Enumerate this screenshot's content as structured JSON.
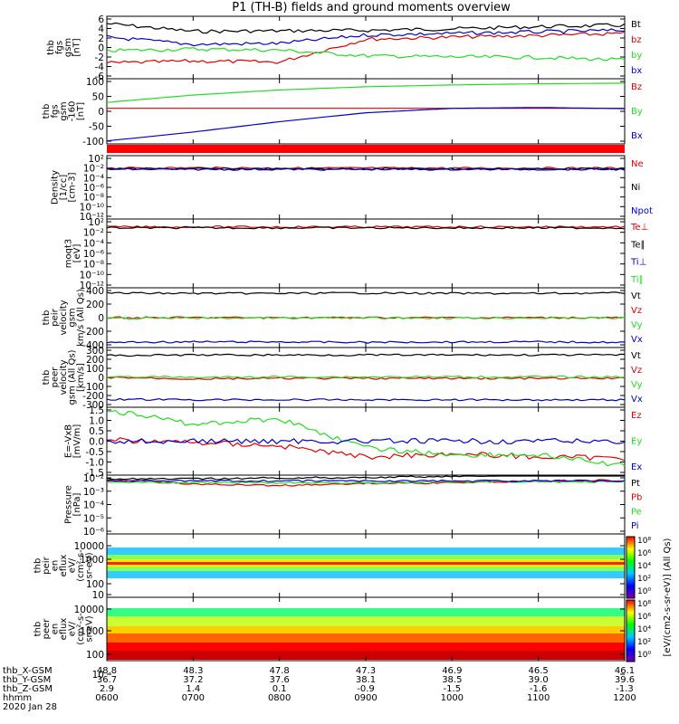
{
  "title": "P1 (TH-B) fields and ground moments overview",
  "colors": {
    "black": "#000000",
    "red": "#e00000",
    "green": "#22dd22",
    "blue": "#0000cc"
  },
  "panels": [
    {
      "id": "fgs",
      "ylabel_lines": [
        "thb",
        "fgs",
        "gsm",
        "[nT]"
      ],
      "yticks": [
        "6",
        "4",
        "2",
        "0",
        "-2",
        "-4",
        "-6"
      ],
      "legend": [
        {
          "text": "Bt",
          "color": "black"
        },
        {
          "text": "bz",
          "color": "red"
        },
        {
          "text": "by",
          "color": "green"
        },
        {
          "text": "bx",
          "color": "blue"
        }
      ]
    },
    {
      "id": "fgs_low",
      "ylabel_lines": [
        "thb",
        "fgs",
        "gsm",
        "-160",
        "[nT]"
      ],
      "yticks": [
        "100",
        "50",
        "0",
        "-50",
        "-100"
      ],
      "legend": [
        {
          "text": "Bz",
          "color": "red"
        },
        {
          "text": "By",
          "color": "green"
        },
        {
          "text": "Bx",
          "color": "blue"
        }
      ]
    },
    {
      "id": "density",
      "ylabel_lines": [
        "Density",
        "[1/cc]",
        "[cm-3]"
      ],
      "yticks": [
        "10²",
        "10⁻²",
        "10⁻⁴",
        "10⁻⁶",
        "10⁻⁸",
        "10⁻¹⁰",
        "10⁻¹²"
      ],
      "legend": [
        {
          "text": "Ne",
          "color": "red"
        },
        {
          "text": "Ni",
          "color": "black"
        },
        {
          "text": "Npot",
          "color": "blue"
        }
      ]
    },
    {
      "id": "temp",
      "ylabel_lines": [
        "moqt3",
        "[eV]"
      ],
      "yticks": [
        "10²",
        "10⁻²",
        "10⁻⁴",
        "10⁻⁶",
        "10⁻⁸",
        "10⁻¹⁰",
        "10⁻¹²"
      ],
      "legend": [
        {
          "text": "Te⊥",
          "color": "red"
        },
        {
          "text": "Te∥",
          "color": "black"
        },
        {
          "text": "Ti⊥",
          "color": "blue"
        },
        {
          "text": "Ti∥",
          "color": "green"
        }
      ]
    },
    {
      "id": "peir_vel",
      "ylabel_lines": [
        "thb",
        "peir",
        "velocity",
        "gsm",
        "km/s (All Qs)"
      ],
      "yticks": [
        "400",
        "200",
        "0",
        "-200",
        "-400"
      ],
      "legend": [
        {
          "text": "Vt",
          "color": "black"
        },
        {
          "text": "Vz",
          "color": "red"
        },
        {
          "text": "Vy",
          "color": "green"
        },
        {
          "text": "Vx",
          "color": "blue"
        }
      ]
    },
    {
      "id": "peer_vel",
      "ylabel_lines": [
        "thb",
        "peer",
        "velocity",
        "gsm (All Qs)",
        "[km/s]"
      ],
      "yticks": [
        "300",
        "200",
        "100",
        "0",
        "-100",
        "-200",
        "-300"
      ],
      "legend": [
        {
          "text": "Vt",
          "color": "black"
        },
        {
          "text": "Vz",
          "color": "red"
        },
        {
          "text": "Vy",
          "color": "green"
        },
        {
          "text": "Vx",
          "color": "blue"
        }
      ]
    },
    {
      "id": "efield",
      "ylabel_lines": [
        "E=-VxB",
        "[mV/m]"
      ],
      "yticks": [
        "1.5",
        "1.0",
        "0.5",
        "0.0",
        "-0.5",
        "-1.0",
        "-1.5"
      ],
      "legend": [
        {
          "text": "Ez",
          "color": "red"
        },
        {
          "text": "Ey",
          "color": "green"
        },
        {
          "text": "Ex",
          "color": "blue"
        }
      ]
    },
    {
      "id": "pressure",
      "ylabel_lines": [
        "Pressure",
        "[nPa]"
      ],
      "yticks": [
        "10⁻²",
        "10⁻³",
        "10⁻⁴",
        "10⁻⁵",
        "10⁻⁶"
      ],
      "legend": [
        {
          "text": "Pt",
          "color": "black"
        },
        {
          "text": "Pb",
          "color": "red"
        },
        {
          "text": "Pe",
          "color": "green"
        },
        {
          "text": "Pi",
          "color": "blue"
        }
      ]
    },
    {
      "id": "peir_spec",
      "ylabel_lines": [
        "thb",
        "peir",
        "en",
        "eflux",
        "eV/",
        "(cm²-s-",
        "sr-eV)"
      ],
      "yticks": [
        "10000",
        "1000",
        "100",
        "10"
      ],
      "legend": []
    },
    {
      "id": "peer_spec",
      "ylabel_lines": [
        "thb",
        "peer",
        "en",
        "eflux",
        "eV/",
        "(cm²-s-",
        "sr-eV)"
      ],
      "yticks": [
        "10000",
        "1000",
        "100",
        "10"
      ],
      "legend": []
    }
  ],
  "colorbar": {
    "ticks": [
      "10⁸",
      "10⁶",
      "10⁴",
      "10²",
      "10⁰"
    ],
    "label": "[eV/(cm2-s-sr-eV)] (All Qs)"
  },
  "xaxis": {
    "row_labels": [
      "thb_X-GSM",
      "thb_Y-GSM",
      "thb_Z-GSM",
      "hhmm",
      "2020 Jan 28"
    ],
    "x_gsm": [
      "48.8",
      "48.3",
      "47.8",
      "47.3",
      "46.9",
      "46.5",
      "46.1"
    ],
    "y_gsm": [
      "36.7",
      "37.2",
      "37.6",
      "38.1",
      "38.5",
      "39.0",
      "39.6"
    ],
    "z_gsm": [
      "2.9",
      "1.4",
      "0.1",
      "-0.9",
      "-1.5",
      "-1.6",
      "-1.3"
    ],
    "hhmm": [
      "0600",
      "0700",
      "0800",
      "0900",
      "1000",
      "1100",
      "1200"
    ]
  },
  "chart_data": {
    "type": "line",
    "title": "P1 (TH-B) fields and ground moments overview",
    "x": [
      "0600",
      "0700",
      "0800",
      "0900",
      "1000",
      "1100",
      "1200"
    ],
    "xlabel": "hhmm",
    "subplots": [
      {
        "panel": "fgs",
        "ylim": [
          -6,
          6
        ],
        "series": [
          {
            "name": "Bt",
            "values": [
              4.6,
              3.1,
              3.2,
              3.3,
              3.6,
              4.0,
              4.3
            ]
          },
          {
            "name": "bz",
            "values": [
              -3.0,
              -2.6,
              -2.8,
              1.6,
              2.0,
              2.3,
              2.7
            ]
          },
          {
            "name": "by",
            "values": [
              -0.6,
              -0.3,
              -0.5,
              -1.6,
              -1.8,
              -1.9,
              -2.4
            ]
          },
          {
            "name": "bx",
            "values": [
              2.0,
              0.6,
              0.8,
              2.4,
              2.7,
              3.0,
              3.3
            ]
          }
        ]
      },
      {
        "panel": "fgs_low",
        "ylim": [
          -120,
          100
        ],
        "series": [
          {
            "name": "Bz",
            "values": [
              0,
              0,
              0,
              0,
              0,
              0,
              0
            ]
          },
          {
            "name": "By",
            "values": [
              20,
              45,
              62,
              73,
              79,
              83,
              85
            ]
          },
          {
            "name": "Bx",
            "values": [
              -110,
              -80,
              -45,
              -15,
              0,
              3,
              -1
            ]
          }
        ]
      },
      {
        "panel": "density",
        "log": true,
        "series": [
          {
            "name": "Ne",
            "values": [
              0.3,
              0.35,
              0.3,
              0.3,
              0.3,
              0.3,
              0.3
            ]
          },
          {
            "name": "Ni",
            "values": [
              0.2,
              0.2,
              0.2,
              0.2,
              0.2,
              0.2,
              0.2
            ]
          },
          {
            "name": "Npot",
            "values": [
              0.15,
              0.15,
              0.15,
              0.15,
              0.15,
              0.15,
              0.15
            ]
          }
        ]
      },
      {
        "panel": "temp",
        "log": true,
        "series": [
          {
            "name": "Te⊥",
            "values": [
              5,
              5,
              5,
              5,
              5,
              5,
              5
            ]
          },
          {
            "name": "Te∥",
            "values": [
              3,
              3,
              3,
              3,
              3,
              3,
              3
            ]
          }
        ]
      },
      {
        "panel": "peir_vel",
        "ylim": [
          -400,
          400
        ],
        "series": [
          {
            "name": "Vt",
            "values": [
              330,
              325,
              325,
              330,
              325,
              325,
              330
            ]
          },
          {
            "name": "Vz",
            "values": [
              0,
              0,
              0,
              0,
              0,
              0,
              0
            ]
          },
          {
            "name": "Vy",
            "values": [
              -10,
              -5,
              -5,
              -5,
              -5,
              -5,
              -5
            ]
          },
          {
            "name": "Vx",
            "values": [
              -330,
              -325,
              -325,
              -330,
              -325,
              -325,
              -330
            ]
          }
        ]
      },
      {
        "panel": "peer_vel",
        "ylim": [
          -300,
          300
        ],
        "series": [
          {
            "name": "Vt",
            "values": [
              220,
              225,
              225,
              225,
              225,
              225,
              225
            ]
          },
          {
            "name": "Vz",
            "values": [
              0,
              -15,
              -10,
              -10,
              -10,
              -10,
              -10
            ]
          },
          {
            "name": "Vy",
            "values": [
              10,
              0,
              5,
              5,
              5,
              5,
              5
            ]
          },
          {
            "name": "Vx",
            "values": [
              -220,
              -225,
              -225,
              -225,
              -225,
              -225,
              -225
            ]
          }
        ]
      },
      {
        "panel": "efield",
        "ylim": [
          -1.5,
          1.5
        ],
        "series": [
          {
            "name": "Ez",
            "values": [
              0.05,
              -0.05,
              -0.2,
              -0.7,
              -0.55,
              -0.7,
              -0.75
            ]
          },
          {
            "name": "Ey",
            "values": [
              1.4,
              0.75,
              1.0,
              -0.3,
              -0.6,
              -0.6,
              -1.1
            ]
          },
          {
            "name": "Ex",
            "values": [
              0,
              0,
              0,
              0,
              0,
              0,
              0
            ]
          }
        ]
      },
      {
        "panel": "pressure",
        "log": true,
        "series": [
          {
            "name": "Pt",
            "values": [
              0.01,
              0.01,
              0.012,
              0.013,
              0.016,
              0.02,
              0.021
            ]
          },
          {
            "name": "Pb",
            "values": [
              0.008,
              0.004,
              0.003,
              0.0045,
              0.005,
              0.007,
              0.008
            ]
          },
          {
            "name": "Pe",
            "values": [
              0.006,
              0.005,
              0.005,
              0.005,
              0.006,
              0.006,
              0.006
            ]
          },
          {
            "name": "Pi",
            "values": [
              0.007,
              0.007,
              0.007,
              0.007,
              0.007,
              0.007,
              0.007
            ]
          }
        ]
      }
    ]
  }
}
